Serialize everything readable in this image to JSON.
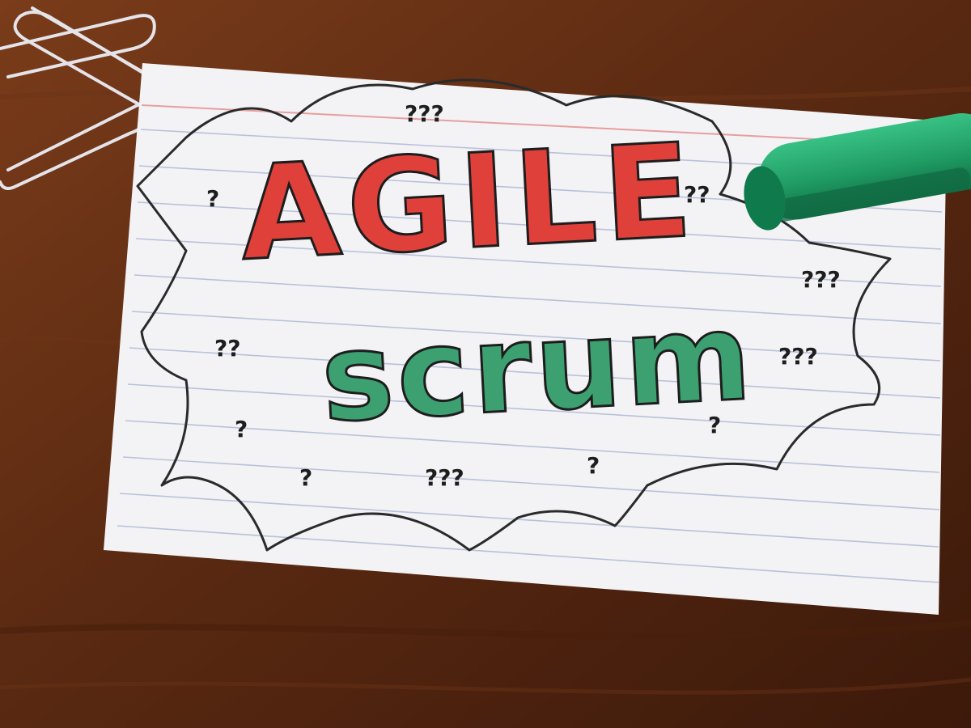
{
  "card": {
    "title": "AGILE",
    "subtitle": "scrum",
    "marks": [
      "?",
      "???",
      "??",
      "?",
      "???",
      "?",
      "???",
      "?",
      "??",
      "???",
      "?"
    ]
  },
  "colors": {
    "desk": "#5a2a12",
    "card": "#f4f4f6",
    "rule_line": "#9aa4c8",
    "red_ink": "#e0403a",
    "green_ink": "#3ca070",
    "black_ink": "#1d1d1d",
    "marker_body": "#1f9a63",
    "paperclip": "#d9d9de"
  },
  "icons": {
    "paperclip": "paperclip-icon",
    "marker": "marker-icon"
  }
}
